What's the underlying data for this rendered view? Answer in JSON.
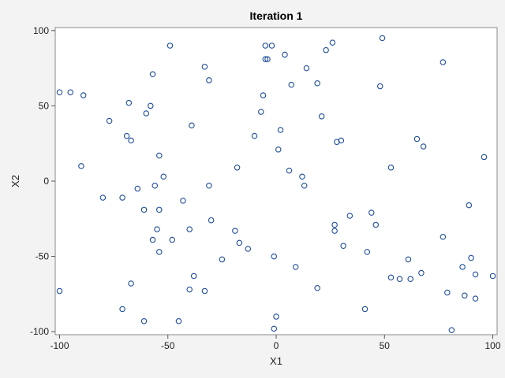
{
  "chart_data": {
    "type": "scatter",
    "title": "Iteration 1",
    "xlabel": "X1",
    "ylabel": "X2",
    "xlim": [
      -102,
      102
    ],
    "ylim": [
      -102,
      102
    ],
    "xticks": [
      -100,
      -50,
      0,
      50,
      100
    ],
    "yticks": [
      -100,
      -50,
      0,
      50,
      100
    ],
    "grid": false,
    "marker": "open-circle",
    "marker_color": "#1f4e9a",
    "series": [
      {
        "points": [
          [
            -100,
            59
          ],
          [
            -95,
            59
          ],
          [
            -89,
            57
          ],
          [
            -90,
            10
          ],
          [
            -80,
            -11
          ],
          [
            -100,
            -73
          ],
          [
            -71,
            -11
          ],
          [
            -71,
            -85
          ],
          [
            -67,
            -68
          ],
          [
            -68,
            52
          ],
          [
            -67,
            27
          ],
          [
            -69,
            30
          ],
          [
            -77,
            40
          ],
          [
            -64,
            -5
          ],
          [
            -61,
            -19
          ],
          [
            -61,
            -93
          ],
          [
            -60,
            45
          ],
          [
            -58,
            50
          ],
          [
            -57,
            71
          ],
          [
            -57,
            -39
          ],
          [
            -56,
            -3
          ],
          [
            -55,
            -32
          ],
          [
            -54,
            17
          ],
          [
            -54,
            -19
          ],
          [
            -54,
            -47
          ],
          [
            -52,
            3
          ],
          [
            -49,
            90
          ],
          [
            -48,
            -39
          ],
          [
            -45,
            -93
          ],
          [
            -43,
            -13
          ],
          [
            -40,
            -32
          ],
          [
            -39,
            37
          ],
          [
            -40,
            -72
          ],
          [
            -38,
            -63
          ],
          [
            -33,
            -73
          ],
          [
            -33,
            76
          ],
          [
            -31,
            67
          ],
          [
            -31,
            -3
          ],
          [
            -30,
            -26
          ],
          [
            -25,
            -52
          ],
          [
            -19,
            -33
          ],
          [
            -18,
            9
          ],
          [
            -17,
            -41
          ],
          [
            -13,
            -45
          ],
          [
            -10,
            30
          ],
          [
            -7,
            46
          ],
          [
            -6,
            57
          ],
          [
            -5,
            81
          ],
          [
            -5,
            90
          ],
          [
            -4,
            81
          ],
          [
            -2,
            90
          ],
          [
            -1,
            -98
          ],
          [
            -1,
            -50
          ],
          [
            0,
            -90
          ],
          [
            1,
            21
          ],
          [
            2,
            34
          ],
          [
            4,
            84
          ],
          [
            6,
            7
          ],
          [
            7,
            64
          ],
          [
            9,
            -57
          ],
          [
            12,
            3
          ],
          [
            13,
            -3
          ],
          [
            14,
            75
          ],
          [
            19,
            65
          ],
          [
            19,
            -71
          ],
          [
            21,
            43
          ],
          [
            23,
            87
          ],
          [
            26,
            92
          ],
          [
            27,
            -33
          ],
          [
            27,
            -29
          ],
          [
            28,
            26
          ],
          [
            30,
            27
          ],
          [
            31,
            -43
          ],
          [
            34,
            -23
          ],
          [
            41,
            -85
          ],
          [
            42,
            -47
          ],
          [
            44,
            -21
          ],
          [
            46,
            -29
          ],
          [
            48,
            63
          ],
          [
            49,
            95
          ],
          [
            53,
            9
          ],
          [
            53,
            -64
          ],
          [
            57,
            -65
          ],
          [
            61,
            -52
          ],
          [
            62,
            -65
          ],
          [
            65,
            28
          ],
          [
            67,
            -61
          ],
          [
            68,
            23
          ],
          [
            77,
            79
          ],
          [
            77,
            -37
          ],
          [
            79,
            -74
          ],
          [
            81,
            -99
          ],
          [
            86,
            -57
          ],
          [
            87,
            -76
          ],
          [
            89,
            -16
          ],
          [
            90,
            -51
          ],
          [
            92,
            -62
          ],
          [
            92,
            -78
          ],
          [
            96,
            16
          ],
          [
            100,
            -63
          ]
        ]
      }
    ]
  }
}
